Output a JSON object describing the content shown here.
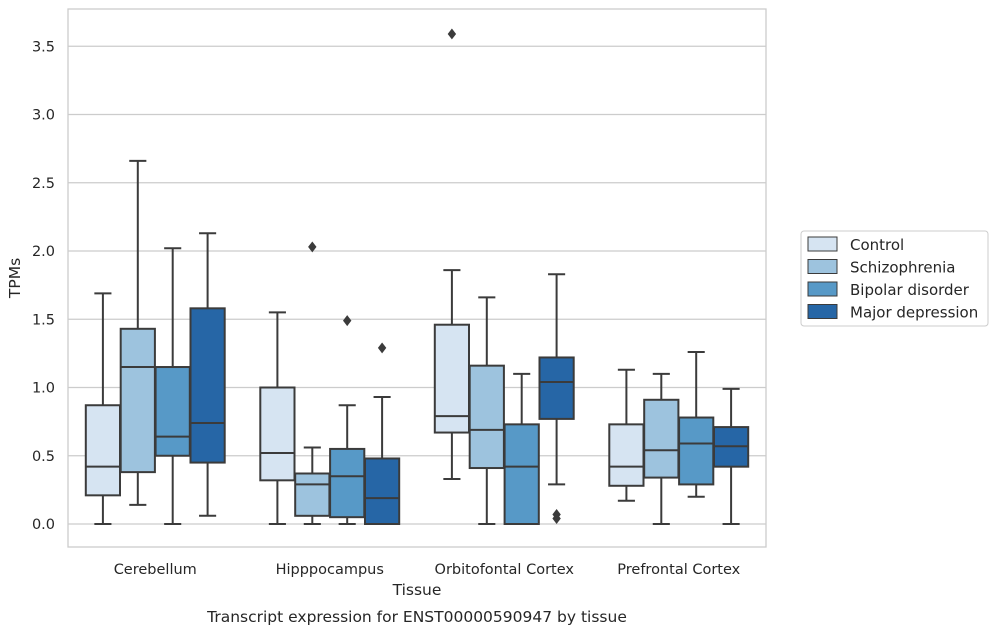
{
  "chart_data": {
    "type": "box",
    "title": "Transcript expression for ENST00000590947 by tissue",
    "xlabel": "Tissue",
    "ylabel": "TPMs",
    "ylim": [
      -0.17,
      3.76
    ],
    "yticks": [
      0.0,
      0.5,
      1.0,
      1.5,
      2.0,
      2.5,
      3.0,
      3.5
    ],
    "ytick_labels": [
      "0.0",
      "0.5",
      "1.0",
      "1.5",
      "2.0",
      "2.5",
      "3.0",
      "3.5"
    ],
    "grid": "horizontal",
    "legend_position": "right-center",
    "categories": [
      "Cerebellum",
      "Hipppocampus",
      "Orbitofontal Cortex",
      "Prefrontal Cortex"
    ],
    "series": [
      {
        "name": "Control",
        "color": "#d6e4f2",
        "boxes": [
          {
            "whisker_low": 0.0,
            "q1": 0.21,
            "median": 0.42,
            "q3": 0.87,
            "whisker_high": 1.69,
            "outliers": []
          },
          {
            "whisker_low": 0.0,
            "q1": 0.32,
            "median": 0.52,
            "q3": 1.0,
            "whisker_high": 1.55,
            "outliers": []
          },
          {
            "whisker_low": 0.33,
            "q1": 0.67,
            "median": 0.79,
            "q3": 1.46,
            "whisker_high": 1.86,
            "outliers": [
              3.59
            ]
          },
          {
            "whisker_low": 0.17,
            "q1": 0.28,
            "median": 0.42,
            "q3": 0.73,
            "whisker_high": 1.13,
            "outliers": []
          }
        ]
      },
      {
        "name": "Schizophrenia",
        "color": "#9dc3de",
        "boxes": [
          {
            "whisker_low": 0.14,
            "q1": 0.38,
            "median": 1.15,
            "q3": 1.43,
            "whisker_high": 2.66,
            "outliers": []
          },
          {
            "whisker_low": 0.0,
            "q1": 0.06,
            "median": 0.29,
            "q3": 0.37,
            "whisker_high": 0.56,
            "outliers": [
              2.03
            ]
          },
          {
            "whisker_low": 0.0,
            "q1": 0.41,
            "median": 0.69,
            "q3": 1.16,
            "whisker_high": 1.66,
            "outliers": []
          },
          {
            "whisker_low": 0.0,
            "q1": 0.34,
            "median": 0.54,
            "q3": 0.91,
            "whisker_high": 1.1,
            "outliers": []
          }
        ]
      },
      {
        "name": "Bipolar disorder",
        "color": "#5799c7",
        "boxes": [
          {
            "whisker_low": 0.0,
            "q1": 0.5,
            "median": 0.64,
            "q3": 1.15,
            "whisker_high": 2.02,
            "outliers": []
          },
          {
            "whisker_low": 0.0,
            "q1": 0.05,
            "median": 0.35,
            "q3": 0.55,
            "whisker_high": 0.87,
            "outliers": [
              1.49
            ]
          },
          {
            "whisker_low": 0.0,
            "q1": 0.0,
            "median": 0.42,
            "q3": 0.73,
            "whisker_high": 1.1,
            "outliers": []
          },
          {
            "whisker_low": 0.2,
            "q1": 0.29,
            "median": 0.59,
            "q3": 0.78,
            "whisker_high": 1.26,
            "outliers": []
          }
        ]
      },
      {
        "name": "Major depression",
        "color": "#2666a6",
        "boxes": [
          {
            "whisker_low": 0.06,
            "q1": 0.45,
            "median": 0.74,
            "q3": 1.58,
            "whisker_high": 2.13,
            "outliers": []
          },
          {
            "whisker_low": 0.0,
            "q1": 0.0,
            "median": 0.19,
            "q3": 0.48,
            "whisker_high": 0.93,
            "outliers": [
              1.29
            ]
          },
          {
            "whisker_low": 0.29,
            "q1": 0.77,
            "median": 1.04,
            "q3": 1.22,
            "whisker_high": 1.83,
            "outliers": [
              0.07,
              0.04
            ]
          },
          {
            "whisker_low": 0.0,
            "q1": 0.42,
            "median": 0.57,
            "q3": 0.71,
            "whisker_high": 0.99,
            "outliers": []
          }
        ]
      }
    ]
  }
}
